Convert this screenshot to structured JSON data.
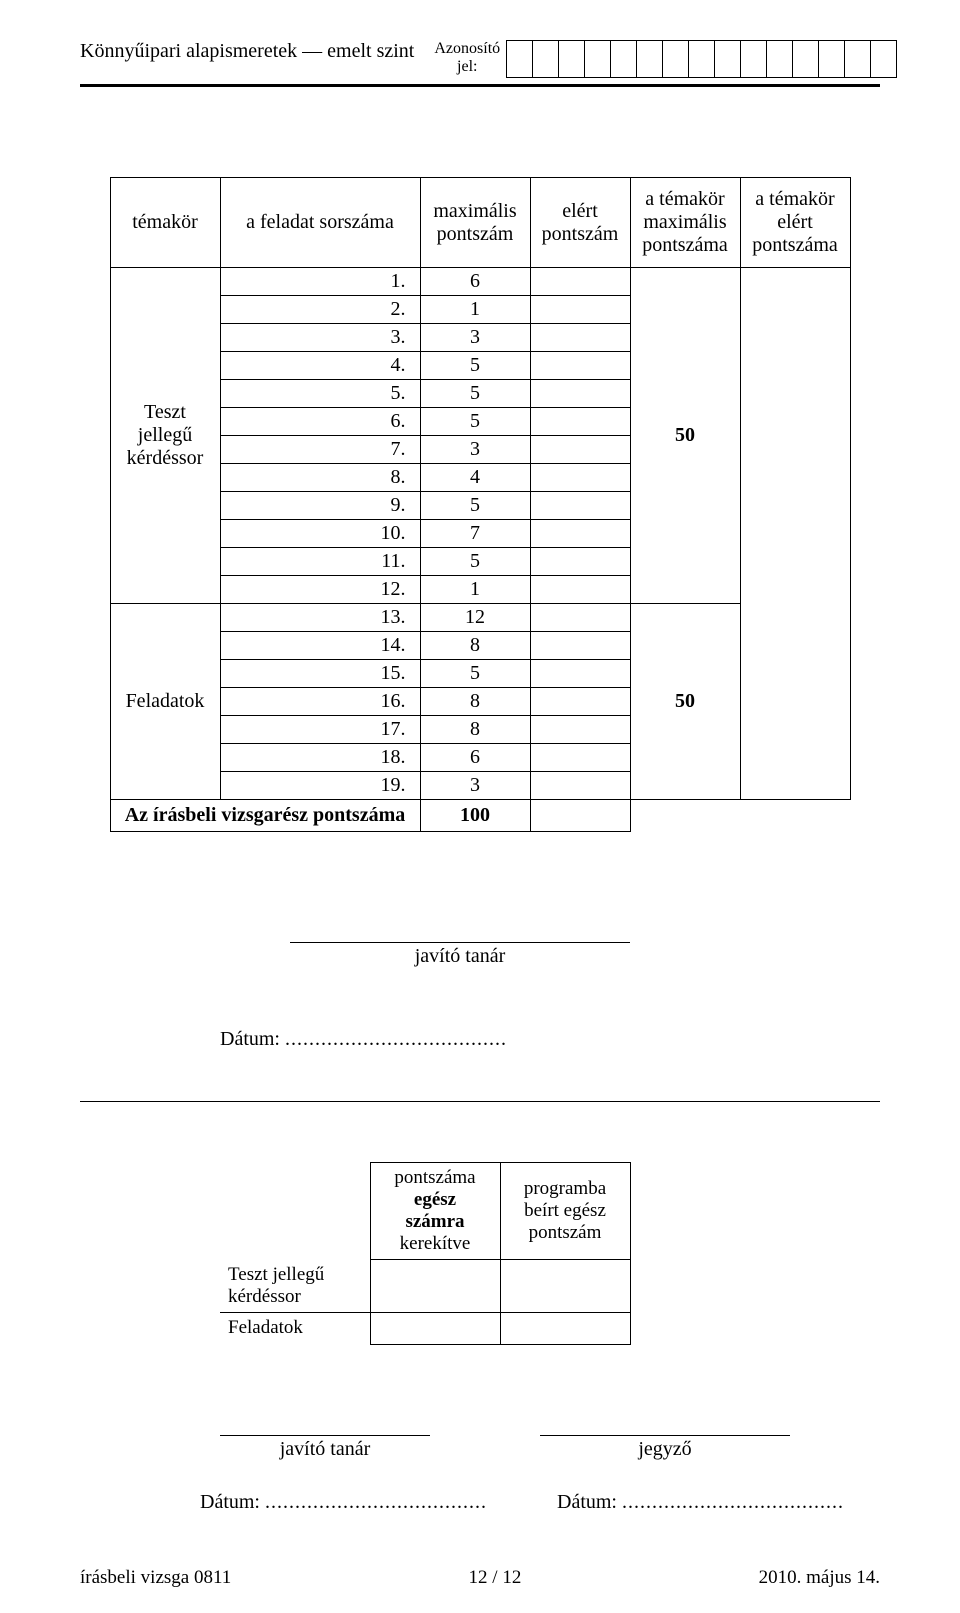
{
  "header": {
    "title_left": "Könnyűipari alapismeretek — emelt szint",
    "id_label_line1": "Azonosító",
    "id_label_line2": "jel:",
    "id_box_count": 15
  },
  "score_table": {
    "headers": {
      "temakor": "témakör",
      "sorszam": "a feladat sorszáma",
      "max": "maximális pontszám",
      "elert": "elért pontszám",
      "t_max": "a témakör maximális pontszáma",
      "t_elert": "a témakör elért pontszáma"
    },
    "groups": [
      {
        "label": "Teszt jellegű kérdéssor",
        "subtotal_max": "50",
        "rows": [
          {
            "n": "1.",
            "max": "6"
          },
          {
            "n": "2.",
            "max": "1"
          },
          {
            "n": "3.",
            "max": "3"
          },
          {
            "n": "4.",
            "max": "5"
          },
          {
            "n": "5.",
            "max": "5"
          },
          {
            "n": "6.",
            "max": "5"
          },
          {
            "n": "7.",
            "max": "3"
          },
          {
            "n": "8.",
            "max": "4"
          },
          {
            "n": "9.",
            "max": "5"
          },
          {
            "n": "10.",
            "max": "7"
          },
          {
            "n": "11.",
            "max": "5"
          },
          {
            "n": "12.",
            "max": "1"
          }
        ]
      },
      {
        "label": "Feladatok",
        "subtotal_max": "50",
        "rows": [
          {
            "n": "13.",
            "max": "12"
          },
          {
            "n": "14.",
            "max": "8"
          },
          {
            "n": "15.",
            "max": "5"
          },
          {
            "n": "16.",
            "max": "8"
          },
          {
            "n": "17.",
            "max": "8"
          },
          {
            "n": "18.",
            "max": "6"
          },
          {
            "n": "19.",
            "max": "3"
          }
        ]
      }
    ],
    "total": {
      "label": "Az írásbeli vizsgarész pontszáma",
      "max": "100"
    }
  },
  "signatures": {
    "teacher": "javító tanár",
    "date_label": "Dátum: ",
    "dots": "....................................."
  },
  "round_table": {
    "headers": {
      "col1": "pontszáma egész számra kerekítve",
      "col1_line1": "pontszáma",
      "col1_line2": "egész",
      "col1_line3": "számra",
      "col1_line4": "kerekítve",
      "col2_line1": "programba",
      "col2_line2": "beírt egész",
      "col2_line3": "pontszám"
    },
    "rows": [
      {
        "label": "Teszt jellegű kérdéssor"
      },
      {
        "label": "Feladatok"
      }
    ]
  },
  "signatures2": {
    "teacher": "javító tanár",
    "clerk": "jegyző",
    "date_label": "Dátum: ",
    "dots": "....................................."
  },
  "footer": {
    "left": "írásbeli vizsga 0811",
    "center": "12 / 12",
    "right": "2010. május 14."
  },
  "style": {
    "text_color": "#000000",
    "bg_color": "#ffffff",
    "font_family": "Times New Roman"
  }
}
